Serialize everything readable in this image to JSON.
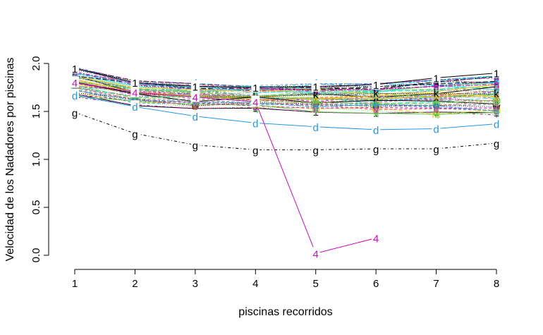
{
  "chart_data": {
    "type": "line",
    "title": "",
    "xlabel": "piscinas recorridos",
    "ylabel": "Velocidad de los Nadadores por piscinas",
    "xlim": [
      1,
      8
    ],
    "ylim": [
      0,
      2
    ],
    "x": [
      1,
      2,
      3,
      4,
      5,
      6,
      7,
      8
    ],
    "x_ticks": [
      "1",
      "2",
      "3",
      "4",
      "5",
      "6",
      "7",
      "8"
    ],
    "y_ticks": [
      "0.0",
      "0.5",
      "1.0",
      "1.5",
      "2.0"
    ],
    "grid": false,
    "legend": "none",
    "highlighted_series": [
      {
        "marker": "g",
        "color": "#000000",
        "dash": "dotdash",
        "values": [
          1.49,
          1.27,
          1.15,
          1.1,
          1.1,
          1.11,
          1.11,
          1.17
        ]
      },
      {
        "marker": "d",
        "color": "#2297E6",
        "dash": "solid",
        "values": [
          1.67,
          1.55,
          1.45,
          1.38,
          1.34,
          1.31,
          1.32,
          1.37
        ]
      },
      {
        "marker": "4",
        "color": "#CD0BBC",
        "dash": "solid",
        "values": [
          1.8,
          1.7,
          1.65,
          1.6,
          0.02,
          0.18,
          null,
          null
        ]
      },
      {
        "marker": "1",
        "color": "#000000",
        "dash": "solid",
        "values": [
          1.95,
          1.8,
          1.76,
          1.75,
          1.76,
          1.78,
          1.85,
          1.9
        ]
      }
    ],
    "background_band": {
      "count": 60,
      "min_values": [
        1.65,
        1.56,
        1.53,
        1.52,
        1.49,
        1.48,
        1.47,
        1.46
      ],
      "max_values": [
        1.96,
        1.82,
        1.79,
        1.77,
        1.79,
        1.79,
        1.83,
        1.87
      ],
      "markers": [
        "1",
        "2",
        "3",
        "4",
        "5",
        "6",
        "7",
        "8",
        "9",
        "0",
        "a",
        "b",
        "c",
        "d",
        "e",
        "f",
        "g",
        "h",
        "i",
        "j",
        "k",
        "l",
        "m",
        "n",
        "o",
        "p",
        "q",
        "r",
        "s",
        "t",
        "u",
        "v",
        "w",
        "x",
        "y",
        "z"
      ],
      "colors": [
        "#000000",
        "#DF536B",
        "#61D04F",
        "#2297E6",
        "#28E2E5",
        "#CD0BBC",
        "#F5C710",
        "#9E9E9E"
      ]
    }
  }
}
